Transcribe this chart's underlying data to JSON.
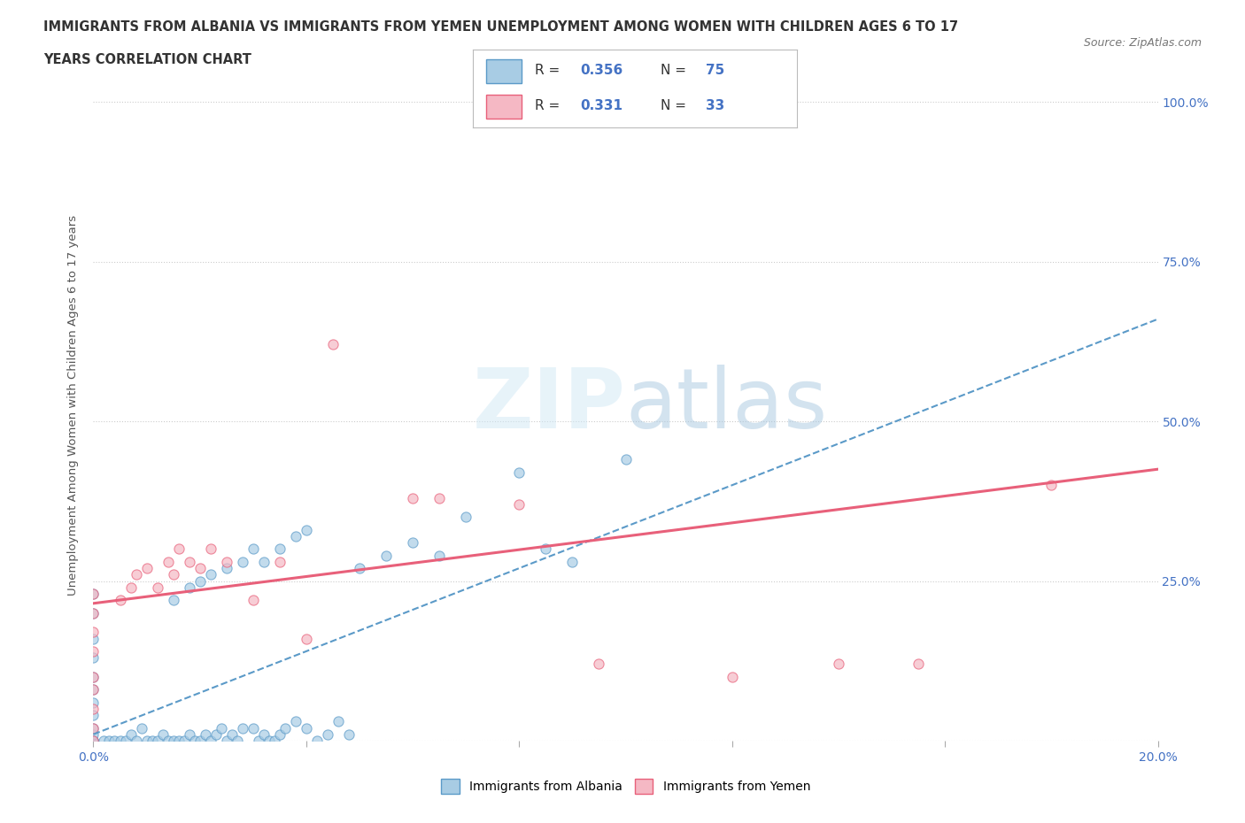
{
  "title_line1": "IMMIGRANTS FROM ALBANIA VS IMMIGRANTS FROM YEMEN UNEMPLOYMENT AMONG WOMEN WITH CHILDREN AGES 6 TO 17",
  "title_line2": "YEARS CORRELATION CHART",
  "source_text": "Source: ZipAtlas.com",
  "ylabel": "Unemployment Among Women with Children Ages 6 to 17 years",
  "xlim": [
    0.0,
    0.2
  ],
  "ylim": [
    0.0,
    1.05
  ],
  "xtick_pos": [
    0.0,
    0.04,
    0.08,
    0.12,
    0.16,
    0.2
  ],
  "xtick_labels": [
    "0.0%",
    "",
    "",
    "",
    "",
    "20.0%"
  ],
  "ytick_pos": [
    0.0,
    0.25,
    0.5,
    0.75,
    1.0
  ],
  "ytick_labels_right": [
    "",
    "25.0%",
    "50.0%",
    "75.0%",
    "100.0%"
  ],
  "watermark": "ZIPatlas",
  "albania_color": "#a8cce4",
  "albania_edge": "#5b9ac8",
  "yemen_color": "#f5b8c4",
  "yemen_edge": "#e8607a",
  "albania_line_color": "#5b9ac8",
  "yemen_line_color": "#e8607a",
  "albania_R": 0.356,
  "albania_N": 75,
  "yemen_R": 0.331,
  "yemen_N": 33,
  "albania_line_slope": 3.25,
  "albania_line_intercept": 0.01,
  "yemen_line_slope": 1.05,
  "yemen_line_intercept": 0.215,
  "albania_scatter": [
    [
      0.0,
      0.0
    ],
    [
      0.0,
      0.0
    ],
    [
      0.0,
      0.0
    ],
    [
      0.0,
      0.0
    ],
    [
      0.0,
      0.0
    ],
    [
      0.0,
      0.01
    ],
    [
      0.0,
      0.02
    ],
    [
      0.0,
      0.04
    ],
    [
      0.0,
      0.06
    ],
    [
      0.0,
      0.08
    ],
    [
      0.0,
      0.1
    ],
    [
      0.0,
      0.13
    ],
    [
      0.0,
      0.16
    ],
    [
      0.0,
      0.2
    ],
    [
      0.0,
      0.23
    ],
    [
      0.002,
      0.0
    ],
    [
      0.003,
      0.0
    ],
    [
      0.004,
      0.0
    ],
    [
      0.005,
      0.0
    ],
    [
      0.006,
      0.0
    ],
    [
      0.007,
      0.01
    ],
    [
      0.008,
      0.0
    ],
    [
      0.009,
      0.02
    ],
    [
      0.01,
      0.0
    ],
    [
      0.011,
      0.0
    ],
    [
      0.012,
      0.0
    ],
    [
      0.013,
      0.01
    ],
    [
      0.014,
      0.0
    ],
    [
      0.015,
      0.0
    ],
    [
      0.016,
      0.0
    ],
    [
      0.017,
      0.0
    ],
    [
      0.018,
      0.01
    ],
    [
      0.019,
      0.0
    ],
    [
      0.02,
      0.0
    ],
    [
      0.021,
      0.01
    ],
    [
      0.022,
      0.0
    ],
    [
      0.023,
      0.01
    ],
    [
      0.024,
      0.02
    ],
    [
      0.025,
      0.0
    ],
    [
      0.026,
      0.01
    ],
    [
      0.027,
      0.0
    ],
    [
      0.028,
      0.02
    ],
    [
      0.03,
      0.02
    ],
    [
      0.031,
      0.0
    ],
    [
      0.032,
      0.01
    ],
    [
      0.033,
      0.0
    ],
    [
      0.034,
      0.0
    ],
    [
      0.035,
      0.01
    ],
    [
      0.036,
      0.02
    ],
    [
      0.038,
      0.03
    ],
    [
      0.04,
      0.02
    ],
    [
      0.042,
      0.0
    ],
    [
      0.044,
      0.01
    ],
    [
      0.046,
      0.03
    ],
    [
      0.048,
      0.01
    ],
    [
      0.015,
      0.22
    ],
    [
      0.018,
      0.24
    ],
    [
      0.02,
      0.25
    ],
    [
      0.022,
      0.26
    ],
    [
      0.025,
      0.27
    ],
    [
      0.028,
      0.28
    ],
    [
      0.03,
      0.3
    ],
    [
      0.032,
      0.28
    ],
    [
      0.035,
      0.3
    ],
    [
      0.038,
      0.32
    ],
    [
      0.04,
      0.33
    ],
    [
      0.05,
      0.27
    ],
    [
      0.055,
      0.29
    ],
    [
      0.06,
      0.31
    ],
    [
      0.065,
      0.29
    ],
    [
      0.07,
      0.35
    ],
    [
      0.08,
      0.42
    ],
    [
      0.085,
      0.3
    ],
    [
      0.09,
      0.28
    ],
    [
      0.1,
      0.44
    ]
  ],
  "yemen_scatter": [
    [
      0.0,
      0.0
    ],
    [
      0.0,
      0.02
    ],
    [
      0.0,
      0.05
    ],
    [
      0.0,
      0.08
    ],
    [
      0.0,
      0.1
    ],
    [
      0.0,
      0.14
    ],
    [
      0.0,
      0.17
    ],
    [
      0.0,
      0.2
    ],
    [
      0.0,
      0.23
    ],
    [
      0.005,
      0.22
    ],
    [
      0.007,
      0.24
    ],
    [
      0.008,
      0.26
    ],
    [
      0.01,
      0.27
    ],
    [
      0.012,
      0.24
    ],
    [
      0.014,
      0.28
    ],
    [
      0.015,
      0.26
    ],
    [
      0.016,
      0.3
    ],
    [
      0.018,
      0.28
    ],
    [
      0.02,
      0.27
    ],
    [
      0.022,
      0.3
    ],
    [
      0.025,
      0.28
    ],
    [
      0.03,
      0.22
    ],
    [
      0.035,
      0.28
    ],
    [
      0.04,
      0.16
    ],
    [
      0.045,
      0.62
    ],
    [
      0.06,
      0.38
    ],
    [
      0.065,
      0.38
    ],
    [
      0.08,
      0.37
    ],
    [
      0.095,
      0.12
    ],
    [
      0.12,
      0.1
    ],
    [
      0.14,
      0.12
    ],
    [
      0.155,
      0.12
    ],
    [
      0.18,
      0.4
    ]
  ]
}
